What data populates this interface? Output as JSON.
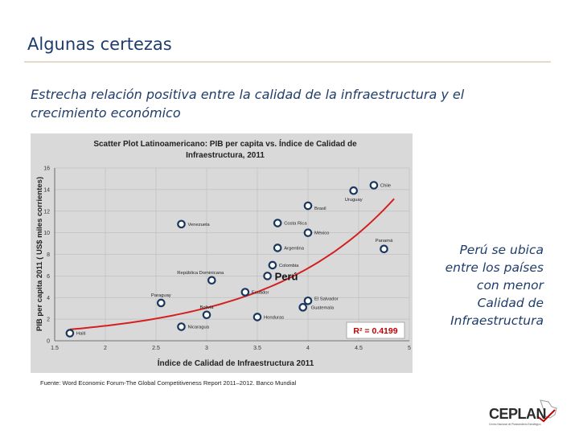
{
  "header": {
    "title": "Algunas certezas",
    "subtitle": "Estrecha relación positiva entre la calidad de la infraestructura y el crecimiento económico"
  },
  "side_note": {
    "lines": [
      "Perú se ubica",
      "entre los países",
      "con menor",
      "Calidad de",
      "Infraestructura"
    ]
  },
  "source": "Fuente: Word Economic Forum-The Global Competitiveness Report 2011–2012.  Banco Mundial",
  "logo": {
    "text": "CEPLAN",
    "subtext": "Centro Nacional de Planeamiento Estratégico"
  },
  "colors": {
    "accent": "#1f3d6b",
    "trend": "#d42020",
    "chart_bg": "#d9d9d9",
    "marker": "#17375e",
    "r2": "#c00000"
  },
  "chart_data": {
    "type": "scatter",
    "title": "Scatter Plot Latinoamericano: PIB per capita vs. Índice de Calidad de Infraestructura, 2011",
    "xlabel": "Índice de Calidad de Infraestructura 2011",
    "ylabel": "PIB per capita 2011 ( US$ miles corrientes)",
    "xlim": [
      1.5,
      5
    ],
    "ylim": [
      0,
      16
    ],
    "xticks": [
      "1.5",
      "2",
      "2.5",
      "3",
      "3.5",
      "4",
      "4.5",
      "5"
    ],
    "yticks": [
      "0",
      "2",
      "4",
      "6",
      "8",
      "10",
      "12",
      "14",
      "16"
    ],
    "r2_label": "R² = 0.4199",
    "highlight_label": "Perú",
    "points": [
      {
        "name": "Haiti",
        "x": 1.65,
        "y": 0.7
      },
      {
        "name": "Nicaragua",
        "x": 2.75,
        "y": 1.3
      },
      {
        "name": "Paraguay",
        "x": 2.55,
        "y": 3.5
      },
      {
        "name": "Bolivia",
        "x": 3.0,
        "y": 2.4
      },
      {
        "name": "Honduras",
        "x": 3.5,
        "y": 2.2
      },
      {
        "name": "República Dominicana",
        "x": 3.05,
        "y": 5.6
      },
      {
        "name": "Ecuador",
        "x": 3.38,
        "y": 4.5
      },
      {
        "name": "Perú",
        "x": 3.6,
        "y": 6.0
      },
      {
        "name": "Colombia",
        "x": 3.65,
        "y": 7.0
      },
      {
        "name": "El Salvador",
        "x": 4.0,
        "y": 3.7
      },
      {
        "name": "Guatemala",
        "x": 3.95,
        "y": 3.1
      },
      {
        "name": "Venezuela",
        "x": 2.75,
        "y": 10.8
      },
      {
        "name": "Costa Rica",
        "x": 3.7,
        "y": 10.9
      },
      {
        "name": "México",
        "x": 4.0,
        "y": 10.0
      },
      {
        "name": "Argentina",
        "x": 3.7,
        "y": 8.6
      },
      {
        "name": "Brasil",
        "x": 4.0,
        "y": 12.5
      },
      {
        "name": "Uruguay",
        "x": 4.45,
        "y": 13.9
      },
      {
        "name": "Chile",
        "x": 4.65,
        "y": 14.4
      },
      {
        "name": "Panamá",
        "x": 4.75,
        "y": 8.5
      }
    ],
    "trendline": {
      "type": "exponential",
      "a": 0.285,
      "b": 0.79,
      "x_range": [
        1.65,
        4.85
      ]
    }
  }
}
